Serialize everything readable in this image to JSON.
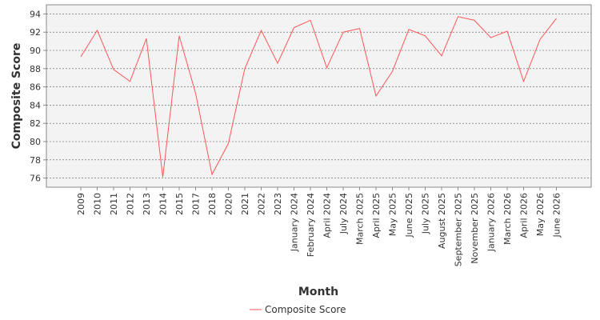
{
  "chart_data": {
    "type": "line",
    "xlabel": "Month",
    "ylabel": "Composite Score",
    "ylim": [
      75,
      95
    ],
    "yticks": [
      76,
      78,
      80,
      82,
      84,
      86,
      88,
      90,
      92,
      94
    ],
    "grid": true,
    "legend_position": "bottom",
    "colors": {
      "series": "#ff5555",
      "plot_bg": "#f3f3f3",
      "grid": "#555555"
    },
    "categories": [
      "2009",
      "2010",
      "2011",
      "2012",
      "2013",
      "2014",
      "2015",
      "2017",
      "2018",
      "2020",
      "2021",
      "2022",
      "2023",
      "January 2024",
      "February 2024",
      "April 2024",
      "July 2024",
      "March 2025",
      "April 2025",
      "May 2025",
      "June 2025",
      "July 2025",
      "August 2025",
      "September 2025",
      "November 2025",
      "January 2026",
      "March 2026",
      "April 2026",
      "May 2026",
      "June 2026"
    ],
    "series": [
      {
        "name": "Composite Score",
        "values": [
          89.3,
          92.2,
          87.9,
          86.6,
          91.3,
          76.1,
          91.6,
          85.3,
          76.4,
          79.8,
          88.0,
          92.2,
          88.6,
          92.5,
          93.3,
          88.1,
          92.0,
          92.4,
          85.0,
          87.7,
          92.3,
          91.6,
          89.4,
          93.7,
          93.3,
          91.4,
          92.1,
          86.6,
          91.2,
          93.5
        ]
      }
    ]
  }
}
